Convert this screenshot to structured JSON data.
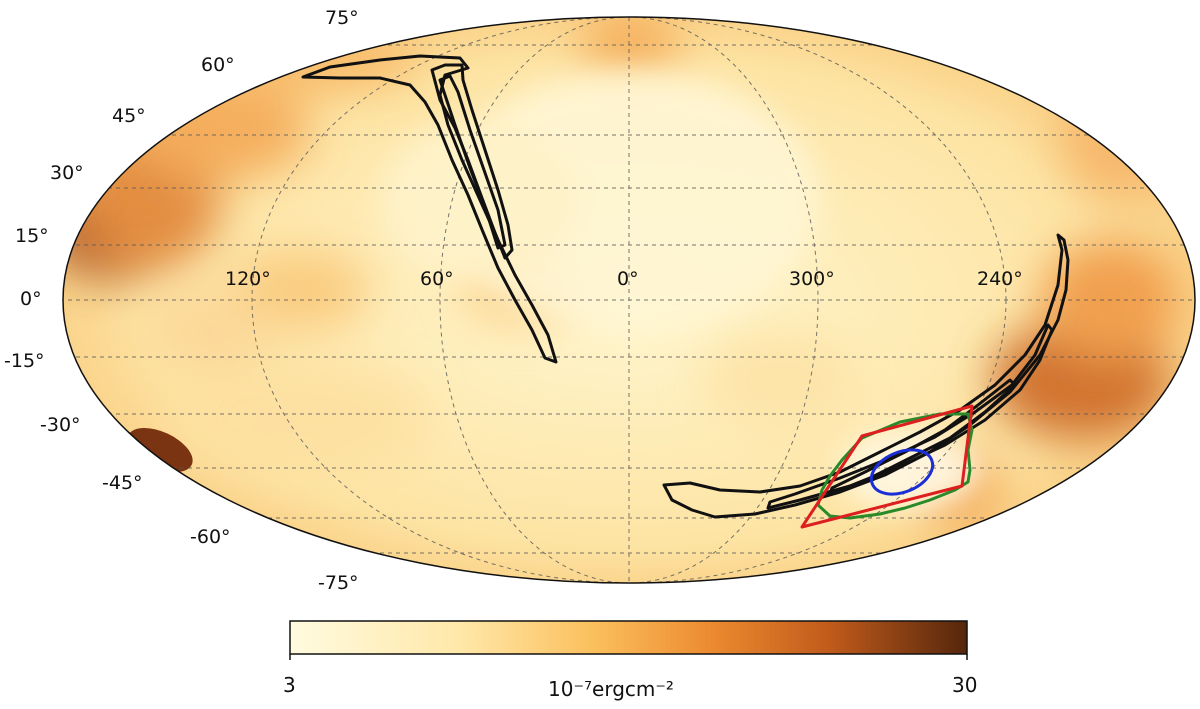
{
  "map": {
    "projection": "mollweide",
    "lat_labels": [
      "75°",
      "60°",
      "45°",
      "30°",
      "15°",
      "0°",
      "-15°",
      "-30°",
      "-45°",
      "-60°",
      "-75°"
    ],
    "lon_labels": [
      "120°",
      "60°",
      "0°",
      "300°",
      "240°"
    ],
    "grid": true,
    "contour_colors": {
      "credible_region_probability_map": "#111111",
      "polygon": "#dd1f1f",
      "smoothed_region": "#2a8a2a",
      "localization_circle": "#1a2fd6"
    }
  },
  "colorbar": {
    "min_label": "3",
    "max_label": "30",
    "unit_label": "10⁻⁷ergcm⁻²",
    "colormap": [
      "#fffbe0",
      "#ffe6a6",
      "#fbb04d",
      "#e6802a",
      "#b5531a",
      "#5a2a0e"
    ]
  }
}
